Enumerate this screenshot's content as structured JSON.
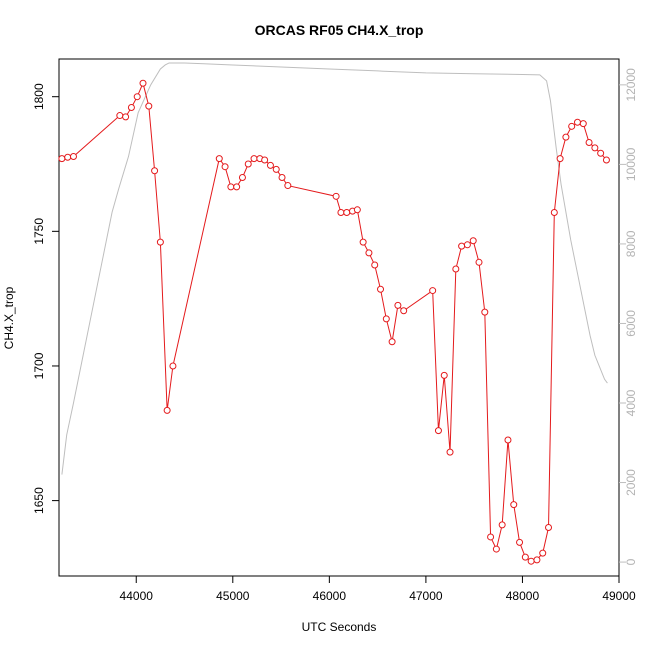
{
  "chart_data": {
    "type": "line",
    "title": "ORCAS RF05 CH4.X_trop",
    "xlabel": "UTC Seconds",
    "ylabel": "CH4.X_trop",
    "xlim": [
      43200,
      49000
    ],
    "ylim": [
      1622,
      1814
    ],
    "y2lim": [
      -350,
      12650
    ],
    "x_ticks": [
      44000,
      45000,
      46000,
      47000,
      48000,
      49000
    ],
    "y_ticks": [
      1650,
      1700,
      1750,
      1800
    ],
    "y2_ticks": [
      0,
      2000,
      4000,
      6000,
      8000,
      10000,
      12000
    ],
    "colors": {
      "series": "#e41a1c",
      "altitude": "#bebebe",
      "right_axis": "#bebebe"
    },
    "series": [
      {
        "x": [
          43230,
          43290,
          43350,
          43830,
          43890,
          43950,
          44010,
          44070,
          44130,
          44190,
          44250,
          44320,
          44380,
          44860,
          44920,
          44980,
          45040,
          45100,
          45160,
          45220,
          45280,
          45330,
          45390,
          45450,
          45510,
          45570,
          46070,
          46120,
          46180,
          46240,
          46290,
          46350,
          46410,
          46470,
          46530,
          46590,
          46650,
          46710,
          46770,
          47070,
          47130,
          47190,
          47250,
          47310,
          47370,
          47430,
          47490,
          47550,
          47610,
          47670,
          47730,
          47790,
          47850,
          47910,
          47970,
          48030,
          48090,
          48150,
          48210,
          48270,
          48330,
          48390,
          48450,
          48510,
          48570,
          48630,
          48690,
          48750,
          48810,
          48870
        ],
        "y": [
          1777,
          1777.5,
          1777.8,
          1793,
          1792.5,
          1796,
          1800,
          1805,
          1796.5,
          1772.5,
          1746,
          1683.5,
          1700,
          1777,
          1774,
          1766.5,
          1766.5,
          1770,
          1775,
          1777,
          1777,
          1776.5,
          1774.5,
          1773,
          1770,
          1767,
          1763,
          1757,
          1757,
          1757.5,
          1758,
          1746,
          1742,
          1737.5,
          1728.5,
          1717.5,
          1709,
          1722.5,
          1720.5,
          1728,
          1676,
          1696.5,
          1668,
          1736,
          1744.5,
          1745,
          1746.5,
          1738.5,
          1720,
          1636.5,
          1632,
          1641,
          1672.5,
          1648.5,
          1634.5,
          1629,
          1627.5,
          1628,
          1630.5,
          1640,
          1757,
          1777,
          1785,
          1789,
          1790.5,
          1790,
          1783,
          1781,
          1779,
          1776.5
        ]
      },
      {
        "x": [
          43230,
          43280,
          43350,
          43450,
          43550,
          43650,
          43750,
          43820,
          43920,
          44020,
          44150,
          44250,
          44300,
          44340,
          44400,
          44500,
          44700,
          45000,
          45500,
          46000,
          46500,
          47000,
          47500,
          48000,
          48180,
          48250,
          48290,
          48320,
          48350,
          48400,
          48450,
          48500,
          48550,
          48600,
          48650,
          48700,
          48750,
          48800,
          48850,
          48880
        ],
        "y": [
          2200,
          3200,
          4000,
          5200,
          6400,
          7600,
          8800,
          9400,
          10200,
          11300,
          12000,
          12400,
          12500,
          12550,
          12550,
          12550,
          12530,
          12500,
          12450,
          12400,
          12350,
          12300,
          12280,
          12260,
          12250,
          12100,
          11600,
          11000,
          10400,
          9500,
          8800,
          8100,
          7500,
          6900,
          6300,
          5700,
          5200,
          4900,
          4600,
          4500
        ]
      }
    ]
  }
}
